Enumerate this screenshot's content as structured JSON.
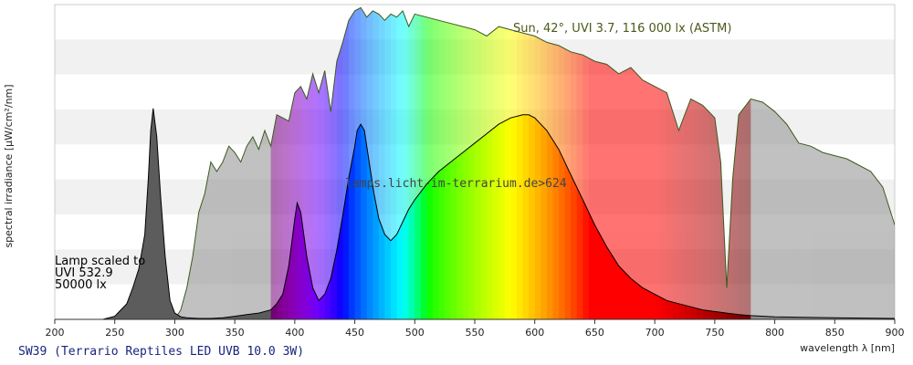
{
  "chart_data": {
    "type": "area",
    "xlabel": "wavelength λ [nm]",
    "ylabel": "spectral irradiance [µW/cm²/nm]",
    "xlim": [
      200,
      900
    ],
    "xticks": [
      200,
      250,
      300,
      350,
      400,
      450,
      500,
      550,
      600,
      650,
      700,
      750,
      800,
      850,
      900
    ],
    "grid": "horizontal bands, no y tick labels",
    "sun_label": "Sun, 42°, UVI 3.7, 116 000 lx (ASTM)",
    "watermark": "lamps.licht-im-terrarium.de>624",
    "lamp_note": [
      "Lamp scaled to",
      "UVI 532.9",
      "50000 lx"
    ],
    "caption": "SW39 (Terrario Reptiles LED UVB 10.0 3W)",
    "ylim": [
      0,
      1
    ],
    "series": [
      {
        "name": "Sun, 42°, UVI 3.7, 116 000 lx (ASTM)",
        "x": [
          300,
          305,
          310,
          315,
          320,
          325,
          330,
          335,
          340,
          345,
          350,
          355,
          360,
          365,
          370,
          375,
          380,
          385,
          390,
          395,
          400,
          405,
          410,
          415,
          420,
          425,
          430,
          435,
          440,
          445,
          450,
          455,
          460,
          465,
          470,
          475,
          480,
          485,
          490,
          495,
          500,
          510,
          520,
          530,
          540,
          550,
          560,
          570,
          580,
          590,
          600,
          610,
          620,
          630,
          640,
          650,
          660,
          670,
          680,
          690,
          700,
          710,
          720,
          730,
          740,
          750,
          755,
          760,
          765,
          770,
          780,
          790,
          800,
          810,
          820,
          830,
          840,
          850,
          860,
          870,
          880,
          890,
          900
        ],
        "values": [
          0.0,
          0.03,
          0.1,
          0.2,
          0.34,
          0.4,
          0.5,
          0.47,
          0.5,
          0.55,
          0.53,
          0.5,
          0.55,
          0.58,
          0.54,
          0.6,
          0.55,
          0.65,
          0.64,
          0.63,
          0.72,
          0.74,
          0.7,
          0.78,
          0.72,
          0.79,
          0.66,
          0.82,
          0.88,
          0.95,
          0.98,
          0.99,
          0.96,
          0.98,
          0.97,
          0.95,
          0.97,
          0.96,
          0.98,
          0.93,
          0.97,
          0.96,
          0.95,
          0.94,
          0.93,
          0.92,
          0.9,
          0.93,
          0.92,
          0.91,
          0.9,
          0.88,
          0.87,
          0.85,
          0.84,
          0.82,
          0.81,
          0.78,
          0.8,
          0.76,
          0.74,
          0.72,
          0.6,
          0.7,
          0.68,
          0.64,
          0.5,
          0.1,
          0.45,
          0.65,
          0.7,
          0.69,
          0.66,
          0.62,
          0.56,
          0.55,
          0.53,
          0.52,
          0.51,
          0.49,
          0.47,
          0.42,
          0.3
        ]
      },
      {
        "name": "SW39 (Terrario Reptiles LED UVB 10.0 3W)",
        "x": [
          240,
          250,
          260,
          265,
          270,
          275,
          278,
          280,
          282,
          285,
          288,
          292,
          296,
          300,
          305,
          310,
          320,
          330,
          340,
          350,
          360,
          370,
          380,
          385,
          390,
          395,
          400,
          402,
          405,
          410,
          415,
          420,
          425,
          430,
          435,
          440,
          445,
          450,
          452,
          455,
          458,
          462,
          466,
          470,
          475,
          480,
          485,
          490,
          495,
          500,
          510,
          520,
          530,
          540,
          550,
          560,
          570,
          580,
          590,
          595,
          600,
          610,
          620,
          630,
          640,
          650,
          660,
          670,
          680,
          690,
          700,
          710,
          720,
          730,
          740,
          750,
          760,
          770,
          780,
          800,
          850,
          900
        ],
        "values": [
          0.0,
          0.01,
          0.05,
          0.1,
          0.16,
          0.27,
          0.45,
          0.6,
          0.67,
          0.58,
          0.4,
          0.2,
          0.06,
          0.02,
          0.008,
          0.005,
          0.003,
          0.003,
          0.005,
          0.01,
          0.015,
          0.02,
          0.03,
          0.05,
          0.08,
          0.17,
          0.32,
          0.37,
          0.34,
          0.2,
          0.1,
          0.06,
          0.08,
          0.13,
          0.22,
          0.33,
          0.45,
          0.55,
          0.6,
          0.62,
          0.6,
          0.5,
          0.4,
          0.32,
          0.27,
          0.25,
          0.27,
          0.31,
          0.35,
          0.38,
          0.43,
          0.47,
          0.5,
          0.53,
          0.56,
          0.59,
          0.62,
          0.64,
          0.65,
          0.65,
          0.64,
          0.6,
          0.54,
          0.46,
          0.38,
          0.3,
          0.23,
          0.17,
          0.13,
          0.1,
          0.08,
          0.06,
          0.05,
          0.04,
          0.03,
          0.025,
          0.02,
          0.015,
          0.012,
          0.008,
          0.005,
          0.003
        ]
      }
    ]
  }
}
